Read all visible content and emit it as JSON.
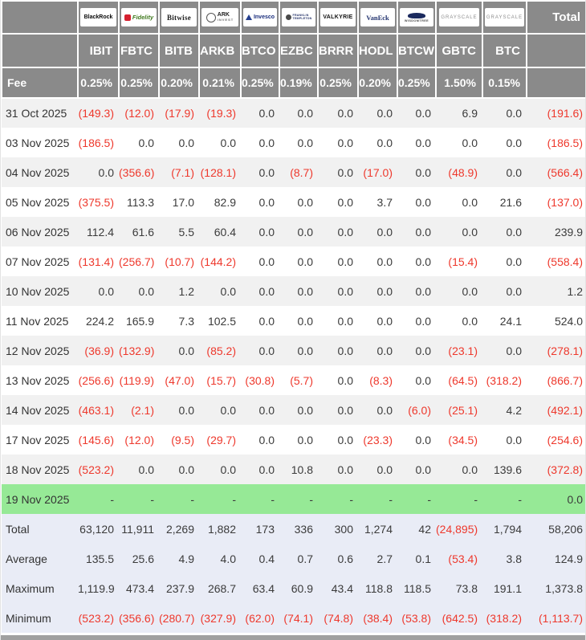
{
  "colors": {
    "header_gray": "#8a8a8a",
    "negative_red": "#ee382c",
    "highlight_green": "#96e996",
    "summary_lavender": "#e9ecf6",
    "row_stripe": "#f1f1f1"
  },
  "chart_data": {
    "type": "table",
    "total_column_label": "Total",
    "providers": [
      {
        "name": "BlackRock",
        "class": "blackrock",
        "lines": [
          "BlackRock"
        ]
      },
      {
        "name": "Fidelity",
        "class": "fidelity",
        "lines": [
          "Fidelity"
        ]
      },
      {
        "name": "Bitwise",
        "class": "bitwise",
        "lines": [
          "Bitwise"
        ]
      },
      {
        "name": "ARK Invest",
        "class": "ark",
        "lines": [
          "ARK",
          "INVEST"
        ]
      },
      {
        "name": "Invesco",
        "class": "invesco",
        "lines": [
          "Invesco"
        ]
      },
      {
        "name": "Franklin Templeton",
        "class": "franklin",
        "lines": [
          "FRANKLIN",
          "TEMPLETON"
        ]
      },
      {
        "name": "Valkyrie",
        "class": "valkyrie",
        "lines": [
          "VALKYRIE"
        ]
      },
      {
        "name": "VanEck",
        "class": "vaneck",
        "lines": [
          "VanEck"
        ]
      },
      {
        "name": "WisdomTree",
        "class": "wisdomtree",
        "lines": [
          "WISDOMTREE"
        ]
      },
      {
        "name": "Grayscale",
        "class": "grayscale",
        "lines": [
          "GRAYSCALE"
        ]
      },
      {
        "name": "Grayscale",
        "class": "grayscale",
        "lines": [
          "GRAYSCALE"
        ]
      }
    ],
    "columns": [
      "IBIT",
      "FBTC",
      "BITB",
      "ARKB",
      "BTCO",
      "EZBC",
      "BRRR",
      "HODL",
      "BTCW",
      "GBTC",
      "BTC"
    ],
    "fee_row": {
      "label": "Fee",
      "values": [
        "0.25%",
        "0.25%",
        "0.20%",
        "0.21%",
        "0.25%",
        "0.19%",
        "0.25%",
        "0.20%",
        "0.25%",
        "1.50%",
        "0.15%"
      ]
    },
    "rows": [
      {
        "label": "31 Oct 2025",
        "values": [
          "(149.3)",
          "(12.0)",
          "(17.9)",
          "(19.3)",
          "0.0",
          "0.0",
          "0.0",
          "0.0",
          "0.0",
          "6.9",
          "0.0"
        ],
        "total": "(191.6)",
        "highlight": false
      },
      {
        "label": "03 Nov 2025",
        "values": [
          "(186.5)",
          "0.0",
          "0.0",
          "0.0",
          "0.0",
          "0.0",
          "0.0",
          "0.0",
          "0.0",
          "0.0",
          "0.0"
        ],
        "total": "(186.5)",
        "highlight": false
      },
      {
        "label": "04 Nov 2025",
        "values": [
          "0.0",
          "(356.6)",
          "(7.1)",
          "(128.1)",
          "0.0",
          "(8.7)",
          "0.0",
          "(17.0)",
          "0.0",
          "(48.9)",
          "0.0"
        ],
        "total": "(566.4)",
        "highlight": false
      },
      {
        "label": "05 Nov 2025",
        "values": [
          "(375.5)",
          "113.3",
          "17.0",
          "82.9",
          "0.0",
          "0.0",
          "0.0",
          "3.7",
          "0.0",
          "0.0",
          "21.6"
        ],
        "total": "(137.0)",
        "highlight": false
      },
      {
        "label": "06 Nov 2025",
        "values": [
          "112.4",
          "61.6",
          "5.5",
          "60.4",
          "0.0",
          "0.0",
          "0.0",
          "0.0",
          "0.0",
          "0.0",
          "0.0"
        ],
        "total": "239.9",
        "highlight": false
      },
      {
        "label": "07 Nov 2025",
        "values": [
          "(131.4)",
          "(256.7)",
          "(10.7)",
          "(144.2)",
          "0.0",
          "0.0",
          "0.0",
          "0.0",
          "0.0",
          "(15.4)",
          "0.0"
        ],
        "total": "(558.4)",
        "highlight": false
      },
      {
        "label": "10 Nov 2025",
        "values": [
          "0.0",
          "0.0",
          "1.2",
          "0.0",
          "0.0",
          "0.0",
          "0.0",
          "0.0",
          "0.0",
          "0.0",
          "0.0"
        ],
        "total": "1.2",
        "highlight": false
      },
      {
        "label": "11 Nov 2025",
        "values": [
          "224.2",
          "165.9",
          "7.3",
          "102.5",
          "0.0",
          "0.0",
          "0.0",
          "0.0",
          "0.0",
          "0.0",
          "24.1"
        ],
        "total": "524.0",
        "highlight": false
      },
      {
        "label": "12 Nov 2025",
        "values": [
          "(36.9)",
          "(132.9)",
          "0.0",
          "(85.2)",
          "0.0",
          "0.0",
          "0.0",
          "0.0",
          "0.0",
          "(23.1)",
          "0.0"
        ],
        "total": "(278.1)",
        "highlight": false
      },
      {
        "label": "13 Nov 2025",
        "values": [
          "(256.6)",
          "(119.9)",
          "(47.0)",
          "(15.7)",
          "(30.8)",
          "(5.7)",
          "0.0",
          "(8.3)",
          "0.0",
          "(64.5)",
          "(318.2)"
        ],
        "total": "(866.7)",
        "highlight": false
      },
      {
        "label": "14 Nov 2025",
        "values": [
          "(463.1)",
          "(2.1)",
          "0.0",
          "0.0",
          "0.0",
          "0.0",
          "0.0",
          "0.0",
          "(6.0)",
          "(25.1)",
          "4.2"
        ],
        "total": "(492.1)",
        "highlight": false
      },
      {
        "label": "17 Nov 2025",
        "values": [
          "(145.6)",
          "(12.0)",
          "(9.5)",
          "(29.7)",
          "0.0",
          "0.0",
          "0.0",
          "(23.3)",
          "0.0",
          "(34.5)",
          "0.0"
        ],
        "total": "(254.6)",
        "highlight": false
      },
      {
        "label": "18 Nov 2025",
        "values": [
          "(523.2)",
          "0.0",
          "0.0",
          "0.0",
          "0.0",
          "10.8",
          "0.0",
          "0.0",
          "0.0",
          "0.0",
          "139.6"
        ],
        "total": "(372.8)",
        "highlight": false
      },
      {
        "label": "19 Nov 2025",
        "values": [
          "-",
          "-",
          "-",
          "-",
          "-",
          "-",
          "-",
          "-",
          "-",
          "-",
          "-"
        ],
        "total": "0.0",
        "highlight": true
      }
    ],
    "summary_rows": [
      {
        "label": "Total",
        "values": [
          "63,120",
          "11,911",
          "2,269",
          "1,882",
          "173",
          "336",
          "300",
          "1,274",
          "42",
          "(24,895)",
          "1,794"
        ],
        "total": "58,206"
      },
      {
        "label": "Average",
        "values": [
          "135.5",
          "25.6",
          "4.9",
          "4.0",
          "0.4",
          "0.7",
          "0.6",
          "2.7",
          "0.1",
          "(53.4)",
          "3.8"
        ],
        "total": "124.9"
      },
      {
        "label": "Maximum",
        "values": [
          "1,119.9",
          "473.4",
          "237.9",
          "268.7",
          "63.4",
          "60.9",
          "43.4",
          "118.8",
          "118.5",
          "73.8",
          "191.1"
        ],
        "total": "1,373.8"
      },
      {
        "label": "Minimum",
        "values": [
          "(523.2)",
          "(356.6)",
          "(280.7)",
          "(327.9)",
          "(62.0)",
          "(74.1)",
          "(74.8)",
          "(38.4)",
          "(53.8)",
          "(642.5)",
          "(318.2)"
        ],
        "total": "(1,113.7)"
      }
    ]
  }
}
